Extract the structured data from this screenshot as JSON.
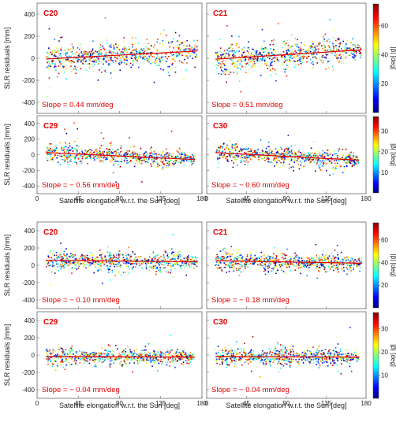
{
  "chart_data": [
    {
      "type": "scatter",
      "group": "before-correction",
      "axes": {
        "xlabel": "Satellite elongation w.r.t. the Sun [deg]",
        "ylabel": "SLR residuals [mm]",
        "xlim": [
          0,
          180
        ],
        "ylim": [
          -500,
          500
        ],
        "xticks": [
          0,
          45,
          90,
          135,
          180
        ],
        "yticks": [
          -400,
          -200,
          0,
          200,
          400
        ]
      },
      "panels": [
        {
          "title": "C20",
          "slope_label": "Slope = 0.44 mm/deg",
          "slope": 0.44,
          "intercept": -11,
          "x_range": [
            10,
            175
          ],
          "spread": 55,
          "colorbar": "cb1"
        },
        {
          "title": "C21",
          "slope_label": "Slope = 0.51 mm/deg",
          "slope": 0.51,
          "intercept": -13,
          "x_range": [
            10,
            175
          ],
          "spread": 55,
          "colorbar": "cb1"
        },
        {
          "title": "C29",
          "slope_label": "Slope = − 0.56 mm/deg",
          "slope": -0.56,
          "intercept": 34,
          "x_range": [
            10,
            172
          ],
          "spread": 50,
          "colorbar": "cb2"
        },
        {
          "title": "C30",
          "slope_label": "Slope = − 0.60 mm/deg",
          "slope": -0.6,
          "intercept": 32,
          "x_range": [
            10,
            172
          ],
          "spread": 50,
          "colorbar": "cb2"
        }
      ]
    },
    {
      "type": "scatter",
      "group": "after-correction",
      "axes": {
        "xlabel": "Satellite elongation w.r.t. the Sun [deg]",
        "ylabel": "SLR residuals [mm]",
        "xlim": [
          0,
          180
        ],
        "ylim": [
          -500,
          500
        ],
        "xticks": [
          0,
          45,
          90,
          135,
          180
        ],
        "yticks": [
          -400,
          -200,
          0,
          200,
          400
        ]
      },
      "panels": [
        {
          "title": "C20",
          "slope_label": "Slope = − 0.10 mm/deg",
          "slope": -0.1,
          "intercept": 58,
          "x_range": [
            10,
            175
          ],
          "spread": 45,
          "colorbar": "cb1"
        },
        {
          "title": "C21",
          "slope_label": "Slope = − 0.18 mm/deg",
          "slope": -0.18,
          "intercept": 55,
          "x_range": [
            10,
            175
          ],
          "spread": 45,
          "colorbar": "cb1"
        },
        {
          "title": "C29",
          "slope_label": "Slope = − 0.04 mm/deg",
          "slope": -0.04,
          "intercept": -17,
          "x_range": [
            10,
            172
          ],
          "spread": 40,
          "colorbar": "cb2"
        },
        {
          "title": "C30",
          "slope_label": "Slope = − 0.04 mm/deg",
          "slope": -0.04,
          "intercept": -17,
          "x_range": [
            10,
            172
          ],
          "spread": 40,
          "colorbar": "cb2"
        }
      ]
    }
  ],
  "colorbars": {
    "cb1": {
      "label": "|β| [deg]",
      "range": [
        0,
        75
      ],
      "ticks": [
        20,
        40,
        60
      ]
    },
    "cb2": {
      "label": "|β| [deg]",
      "range": [
        0,
        37
      ],
      "ticks": [
        10,
        20,
        30
      ]
    }
  },
  "colors": {
    "fit_line": "#e00000",
    "title": "#e00000",
    "axis": "#666666",
    "colormap": [
      "#00007f",
      "#0000ff",
      "#007fff",
      "#00ffff",
      "#7fff7f",
      "#ffff00",
      "#ff7f00",
      "#ff0000",
      "#7f0000"
    ]
  }
}
